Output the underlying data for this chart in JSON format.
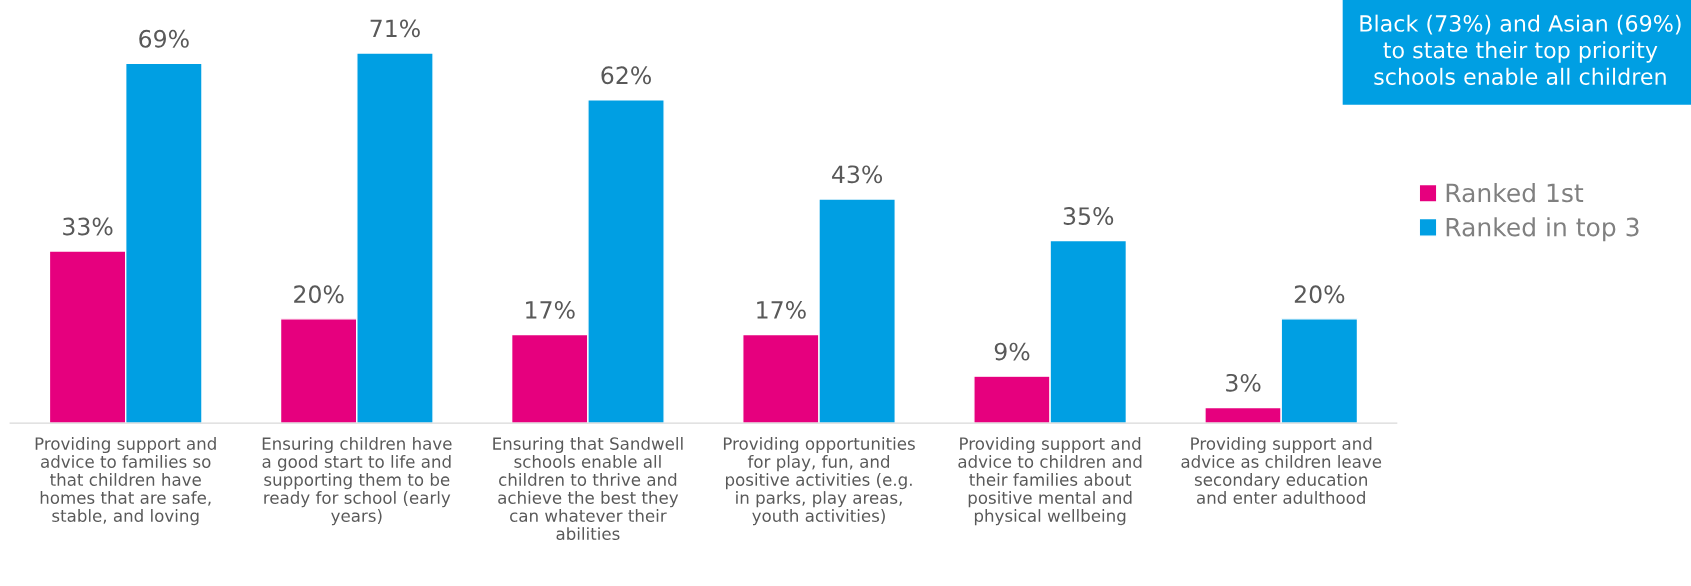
{
  "chart_data": {
    "type": "bar",
    "categories": [
      "Providing support and\nadvice to families so\nthat children have\nhomes that are safe,\nstable, and loving",
      "Ensuring children have\na good start to life and\nsupporting them to be\nready for school (early\nyears)",
      "Ensuring that Sandwell\nschools enable all\nchildren to thrive and\nachieve the best they\ncan whatever their\nabilities",
      "Providing opportunities\nfor play, fun, and\npositive activities (e.g.\nin parks, play areas,\nyouth activities)",
      "Providing support and\nadvice to children and\ntheir families about\npositive mental and\nphysical wellbeing",
      "Providing support and\nadvice as children leave\nsecondary education\nand enter adulthood"
    ],
    "series": [
      {
        "name": "Ranked 1st",
        "color": "#e6007e",
        "values": [
          33,
          20,
          17,
          17,
          9,
          3
        ],
        "value_labels": [
          "33%",
          "20%",
          "17%",
          "17%",
          "9%",
          "3%"
        ]
      },
      {
        "name": "Ranked in top 3",
        "color": "#009fe3",
        "values": [
          69,
          71,
          62,
          43,
          35,
          20
        ],
        "value_labels": [
          "69%",
          "71%",
          "62%",
          "43%",
          "35%",
          "20%"
        ]
      }
    ],
    "legend": "right",
    "annotations": [
      "Black (73%) and Asian (69%)\nto state their top priority\nschools enable all children"
    ]
  }
}
